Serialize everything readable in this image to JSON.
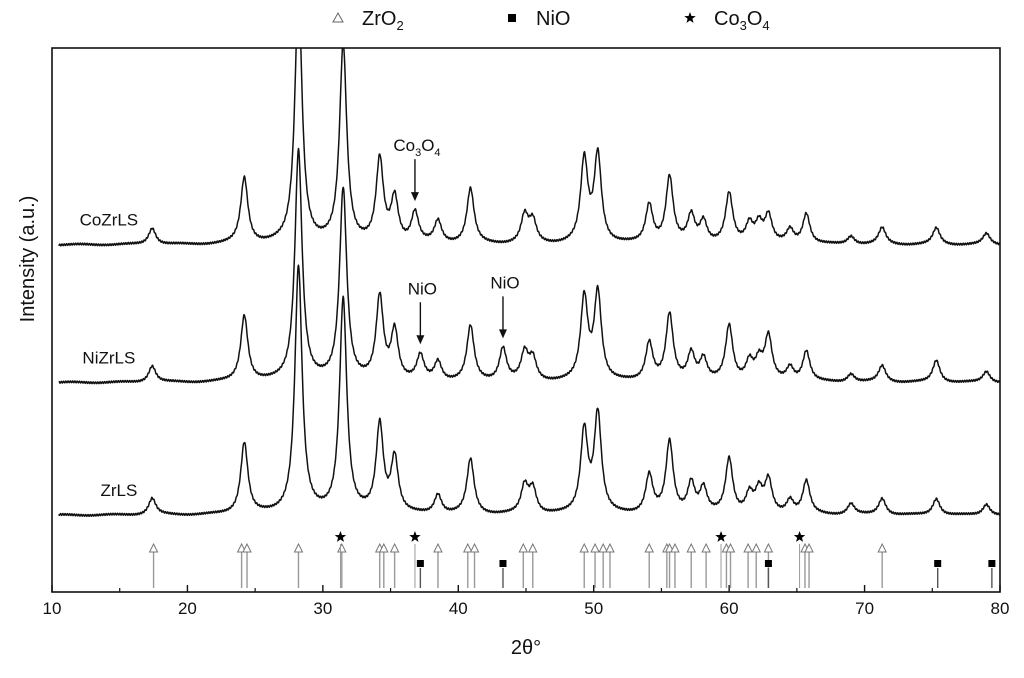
{
  "chart_data": {
    "type": "line",
    "xlabel": "2θ°",
    "ylabel": "Intensity (a.u.)",
    "xlim": [
      10,
      80
    ],
    "xticks": [
      10,
      20,
      30,
      40,
      50,
      60,
      70,
      80
    ],
    "grid": false,
    "legend": {
      "placement": "top-center",
      "entries": [
        {
          "symbol": "triangle-open",
          "label": "ZrO",
          "sub": "2"
        },
        {
          "symbol": "square-filled",
          "label": "NiO",
          "sub": ""
        },
        {
          "symbol": "star-filled",
          "label": "Co",
          "sub": "3",
          "label2": "O",
          "sub2": "4"
        }
      ]
    },
    "series": [
      {
        "name": "CoZrLS",
        "baseline": 0.52,
        "background": 0.05,
        "peaks": [
          [
            17.4,
            0.3
          ],
          [
            24.2,
            1.2
          ],
          [
            28.2,
            4.6
          ],
          [
            31.5,
            3.6
          ],
          [
            34.2,
            1.5
          ],
          [
            35.3,
            0.8
          ],
          [
            36.8,
            0.55
          ],
          [
            38.5,
            0.4
          ],
          [
            40.9,
            1.0
          ],
          [
            44.9,
            0.5
          ],
          [
            45.5,
            0.4
          ],
          [
            49.3,
            1.5
          ],
          [
            50.3,
            1.6
          ],
          [
            54.1,
            0.7
          ],
          [
            55.6,
            1.2
          ],
          [
            57.2,
            0.5
          ],
          [
            58.1,
            0.4
          ],
          [
            60.0,
            0.9
          ],
          [
            61.5,
            0.35
          ],
          [
            62.2,
            0.35
          ],
          [
            62.9,
            0.5
          ],
          [
            64.5,
            0.25
          ],
          [
            65.7,
            0.55
          ],
          [
            69.0,
            0.15
          ],
          [
            71.3,
            0.3
          ],
          [
            75.3,
            0.3
          ],
          [
            79.0,
            0.2
          ]
        ]
      },
      {
        "name": "NiZrLS",
        "baseline": 0.255,
        "background": 0.05,
        "peaks": [
          [
            17.4,
            0.3
          ],
          [
            24.2,
            1.2
          ],
          [
            28.2,
            4.2
          ],
          [
            31.5,
            3.5
          ],
          [
            34.2,
            1.5
          ],
          [
            35.3,
            0.9
          ],
          [
            37.2,
            0.45
          ],
          [
            38.5,
            0.35
          ],
          [
            40.9,
            1.0
          ],
          [
            43.3,
            0.6
          ],
          [
            44.9,
            0.5
          ],
          [
            45.5,
            0.4
          ],
          [
            49.3,
            1.5
          ],
          [
            50.3,
            1.6
          ],
          [
            54.1,
            0.7
          ],
          [
            55.6,
            1.2
          ],
          [
            57.2,
            0.5
          ],
          [
            58.1,
            0.4
          ],
          [
            60.0,
            1.0
          ],
          [
            61.5,
            0.35
          ],
          [
            62.2,
            0.35
          ],
          [
            62.9,
            0.8
          ],
          [
            64.5,
            0.25
          ],
          [
            65.7,
            0.55
          ],
          [
            69.0,
            0.15
          ],
          [
            71.3,
            0.3
          ],
          [
            75.3,
            0.4
          ],
          [
            79.0,
            0.2
          ]
        ]
      },
      {
        "name": "ZrLS",
        "baseline": 0.0,
        "background": 0.05,
        "peaks": [
          [
            17.4,
            0.3
          ],
          [
            24.2,
            1.3
          ],
          [
            28.2,
            4.5
          ],
          [
            31.5,
            3.9
          ],
          [
            34.2,
            1.6
          ],
          [
            35.3,
            1.0
          ],
          [
            38.5,
            0.35
          ],
          [
            40.9,
            1.0
          ],
          [
            44.9,
            0.5
          ],
          [
            45.5,
            0.45
          ],
          [
            49.3,
            1.5
          ],
          [
            50.3,
            1.8
          ],
          [
            54.1,
            0.7
          ],
          [
            55.6,
            1.3
          ],
          [
            57.2,
            0.55
          ],
          [
            58.1,
            0.45
          ],
          [
            60.0,
            1.0
          ],
          [
            61.5,
            0.35
          ],
          [
            62.2,
            0.4
          ],
          [
            62.9,
            0.6
          ],
          [
            64.5,
            0.25
          ],
          [
            65.7,
            0.6
          ],
          [
            69.0,
            0.2
          ],
          [
            71.3,
            0.3
          ],
          [
            75.3,
            0.3
          ],
          [
            79.0,
            0.2
          ]
        ]
      }
    ],
    "reference": {
      "ZrO2": [
        17.5,
        24.0,
        24.4,
        28.2,
        31.4,
        34.2,
        34.5,
        35.3,
        38.5,
        40.7,
        41.2,
        44.8,
        45.5,
        49.3,
        50.1,
        50.7,
        51.2,
        54.1,
        55.4,
        55.6,
        56.0,
        57.2,
        58.3,
        59.8,
        60.1,
        61.4,
        62.0,
        62.9,
        65.6,
        65.9,
        71.3
      ],
      "NiO": [
        37.2,
        43.3,
        62.9,
        75.4,
        79.4
      ],
      "Co3O4": [
        31.3,
        36.8,
        59.4,
        65.2
      ]
    },
    "annotations": [
      {
        "series": "CoZrLS",
        "x": 36.8,
        "label": "Co",
        "sub": "3",
        "label2": "O",
        "sub2": "4"
      },
      {
        "series": "NiZrLS",
        "x": 37.2,
        "label": "NiO"
      },
      {
        "series": "NiZrLS",
        "x": 43.3,
        "label": "NiO"
      }
    ]
  }
}
